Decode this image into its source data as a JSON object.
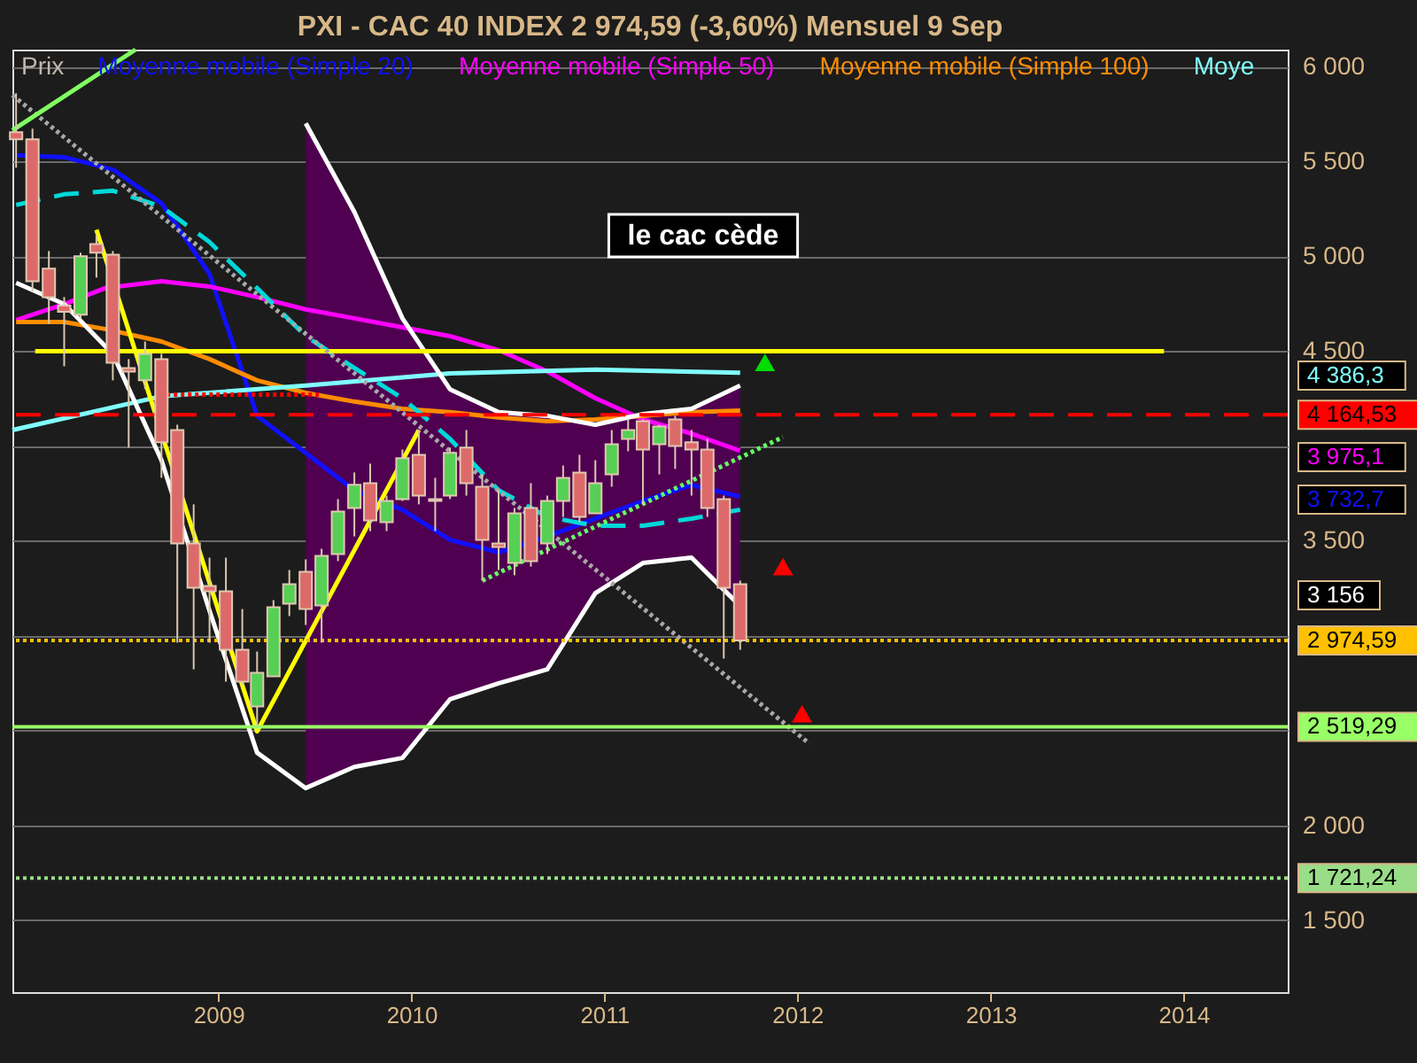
{
  "chart_data": {
    "type": "candlestick",
    "title": "PXI - CAC 40 INDEX    2 974,59 (-3,60%)    Mensuel  9 Sep",
    "xlim": [
      "2007-12-08",
      "2014-07-17"
    ],
    "xticks": [
      {
        "value": "2009-01-01",
        "label": "2009"
      },
      {
        "value": "2010-01-01",
        "label": "2010"
      },
      {
        "value": "2011-01-01",
        "label": "2011"
      },
      {
        "value": "2012-01-01",
        "label": "2012"
      },
      {
        "value": "2013-01-01",
        "label": "2013"
      },
      {
        "value": "2014-01-01",
        "label": "2014"
      }
    ],
    "ylim": [
      1120,
      6090
    ],
    "yticks": [
      {
        "value": 1500,
        "label": "1 500"
      },
      {
        "value": 2000,
        "label": "2 000"
      },
      {
        "value": 2500,
        "label": null
      },
      {
        "value": 3000,
        "label": null
      },
      {
        "value": 3500,
        "label": "3 500"
      },
      {
        "value": 4000,
        "label": null
      },
      {
        "value": 4500,
        "label": "4 500"
      },
      {
        "value": 5000,
        "label": "5 000"
      },
      {
        "value": 5500,
        "label": "5 500"
      },
      {
        "value": 6000,
        "label": "6 000"
      }
    ],
    "grid": "y",
    "legend": "top left",
    "series": [
      {
        "name": "Prix",
        "color": "#c0b8b0",
        "x": [
          "2007-12-15",
          "2008-01-15",
          "2008-02-15",
          "2008-03-15",
          "2008-04-15",
          "2008-05-15",
          "2008-06-15",
          "2008-07-15",
          "2008-08-15",
          "2008-09-15",
          "2008-10-15",
          "2008-11-15",
          "2008-12-15",
          "2009-01-15",
          "2009-02-15",
          "2009-03-15",
          "2009-04-15",
          "2009-05-15",
          "2009-06-15",
          "2009-07-15",
          "2009-08-15",
          "2009-09-15",
          "2009-10-15",
          "2009-11-15",
          "2009-12-15",
          "2010-01-15",
          "2010-02-15",
          "2010-03-15",
          "2010-04-15",
          "2010-05-15",
          "2010-06-15",
          "2010-07-15",
          "2010-08-15",
          "2010-09-15",
          "2010-10-15",
          "2010-11-15",
          "2010-12-15",
          "2011-01-15",
          "2011-02-15",
          "2011-03-15",
          "2011-04-15",
          "2011-05-15",
          "2011-06-15",
          "2011-07-15",
          "2011-08-15",
          "2011-09-15"
        ],
        "ohlc": [
          [
            5654,
            5860,
            5467,
            5617
          ],
          [
            5617,
            5673,
            4813,
            4869
          ],
          [
            4935,
            5028,
            4645,
            4785
          ],
          [
            4740,
            4785,
            4420,
            4707
          ],
          [
            4692,
            5019,
            4673,
            5000
          ],
          [
            5065,
            5112,
            4888,
            5019
          ],
          [
            5009,
            5028,
            4346,
            4439
          ],
          [
            4411,
            4458,
            3991,
            4392
          ],
          [
            4346,
            4551,
            4300,
            4486
          ],
          [
            4458,
            4486,
            3832,
            4019
          ],
          [
            4084,
            4112,
            2963,
            3486
          ],
          [
            3486,
            3692,
            2822,
            3252
          ],
          [
            3262,
            3411,
            2963,
            3234
          ],
          [
            3234,
            3411,
            2757,
            2925
          ],
          [
            2925,
            3140,
            2738,
            2757
          ],
          [
            2626,
            2916,
            2520,
            2804
          ],
          [
            2785,
            3187,
            2785,
            3149
          ],
          [
            3168,
            3346,
            3103,
            3271
          ],
          [
            3336,
            3402,
            3056,
            3140
          ],
          [
            3159,
            3458,
            2963,
            3421
          ],
          [
            3430,
            3720,
            3393,
            3654
          ],
          [
            3673,
            3860,
            3523,
            3795
          ],
          [
            3804,
            3907,
            3551,
            3607
          ],
          [
            3598,
            3738,
            3551,
            3710
          ],
          [
            3720,
            3981,
            3710,
            3935
          ],
          [
            3953,
            4084,
            3692,
            3738
          ],
          [
            3720,
            3832,
            3551,
            3710
          ],
          [
            3738,
            3991,
            3720,
            3963
          ],
          [
            3991,
            4084,
            3738,
            3804
          ],
          [
            3785,
            3850,
            3290,
            3505
          ],
          [
            3486,
            3766,
            3346,
            3467
          ],
          [
            3383,
            3673,
            3318,
            3645
          ],
          [
            3673,
            3804,
            3364,
            3392
          ],
          [
            3486,
            3738,
            3430,
            3710
          ],
          [
            3710,
            3897,
            3626,
            3832
          ],
          [
            3860,
            3953,
            3598,
            3626
          ],
          [
            3645,
            3925,
            3645,
            3804
          ],
          [
            3850,
            4084,
            3785,
            4009
          ],
          [
            4037,
            4140,
            3972,
            4084
          ],
          [
            4131,
            4140,
            3692,
            3981
          ],
          [
            4009,
            4112,
            3850,
            4103
          ],
          [
            4140,
            4159,
            3879,
            4000
          ],
          [
            4019,
            4084,
            3738,
            3981
          ],
          [
            3981,
            4037,
            3626,
            3673
          ],
          [
            3720,
            3738,
            2879,
            3252
          ],
          [
            3271,
            3290,
            2925,
            2974.59
          ]
        ],
        "colors": [
          "#dd6a6a",
          "#dd6a6a",
          "#dd6a6a",
          "#dd6a6a",
          "#55d055",
          "#dd6a6a",
          "#dd6a6a",
          "#dd6a6a",
          "#55d055",
          "#dd6a6a",
          "#dd6a6a",
          "#dd6a6a",
          "#dd6a6a",
          "#dd6a6a",
          "#dd6a6a",
          "#55d055",
          "#55d055",
          "#55d055",
          "#dd6a6a",
          "#55d055",
          "#55d055",
          "#55d055",
          "#dd6a6a",
          "#55d055",
          "#55d055",
          "#dd6a6a",
          "#dd6a6a",
          "#55d055",
          "#dd6a6a",
          "#dd6a6a",
          "#dd6a6a",
          "#55d055",
          "#dd6a6a",
          "#55d055",
          "#55d055",
          "#dd6a6a",
          "#55d055",
          "#55d055",
          "#55d055",
          "#dd6a6a",
          "#55d055",
          "#dd6a6a",
          "#dd6a6a",
          "#dd6a6a",
          "#dd6a6a",
          "#dd6a6a"
        ]
      },
      {
        "name": "Moyenne mobile (Simple 20)",
        "type": "line",
        "color": "#1010ff",
        "x": [
          "2007-12-15",
          "2008-03-15",
          "2008-06-15",
          "2008-09-15",
          "2008-12-15",
          "2009-03-15",
          "2009-06-15",
          "2009-09-15",
          "2009-12-15",
          "2010-03-15",
          "2010-06-15",
          "2010-09-15",
          "2010-12-15",
          "2011-03-15",
          "2011-06-15",
          "2011-09-15"
        ],
        "values": [
          5533,
          5523,
          5458,
          5280,
          4907,
          4159,
          3963,
          3766,
          3664,
          3505,
          3439,
          3523,
          3617,
          3710,
          3794,
          3732.7
        ],
        "lower": [
          null,
          null,
          null,
          null,
          null,
          null,
          2196,
          2308,
          2355,
          2664,
          2748,
          2822,
          3224,
          3383,
          3411,
          3156
        ],
        "upper": [
          null,
          null,
          null,
          null,
          null,
          null,
          5701,
          5234,
          4673,
          4299,
          4178,
          4159,
          4112,
          4168,
          4196,
          4318
        ]
      },
      {
        "name": "Moyenne mobile (Simple 50)",
        "type": "line",
        "color": "#ff00ff",
        "x": [
          "2007-12-15",
          "2008-03-15",
          "2008-05-31",
          "2008-09-15",
          "2008-12-15",
          "2009-03-15",
          "2009-06-15",
          "2009-09-15",
          "2009-12-15",
          "2010-03-15",
          "2010-06-15",
          "2010-09-15",
          "2010-12-15",
          "2011-03-15",
          "2011-06-15",
          "2011-09-15"
        ],
        "values": [
          4664,
          4748,
          4832,
          4869,
          4841,
          4785,
          4720,
          4673,
          4626,
          4579,
          4505,
          4393,
          4252,
          4140,
          4065,
          3975.1
        ]
      },
      {
        "name": "Moyenne mobile (Simple 100)",
        "type": "line",
        "color": "#ff8c00",
        "x": [
          "2007-12-15",
          "2008-03-15",
          "2008-05-31",
          "2008-09-15",
          "2008-12-15",
          "2009-03-15",
          "2009-06-15",
          "2009-09-15",
          "2009-12-15",
          "2010-03-15",
          "2010-06-15",
          "2010-09-15",
          "2010-12-15",
          "2011-03-15",
          "2011-06-15",
          "2011-09-15"
        ],
        "values": [
          4654,
          4654,
          4617,
          4551,
          4458,
          4346,
          4280,
          4234,
          4196,
          4178,
          4150,
          4131,
          4140,
          4159,
          4178,
          4187
        ]
      },
      {
        "name": "Moye",
        "type": "line",
        "color": "#80ffff",
        "x": [
          "2007-12-08",
          "2008-09-15",
          "2009-06-15",
          "2010-03-15",
          "2010-12-15",
          "2011-09-15"
        ],
        "values": [
          4084,
          4262,
          4318,
          4383,
          4402,
          4386.3
        ]
      },
      {
        "type": "line",
        "color": "#00d8d8",
        "line_style": "dashed",
        "x": [
          "2007-12-15",
          "2008-03-15",
          "2008-06-15",
          "2008-09-15",
          "2008-12-15",
          "2009-03-15",
          "2009-06-15",
          "2009-09-15",
          "2009-12-15",
          "2010-03-15",
          "2010-06-15",
          "2010-09-15",
          "2010-12-15",
          "2011-03-15",
          "2011-06-15",
          "2011-09-15"
        ],
        "values": [
          5271,
          5327,
          5346,
          5262,
          5075,
          4832,
          4579,
          4411,
          4252,
          4037,
          3766,
          3626,
          3579,
          3579,
          3617,
          3664
        ]
      },
      {
        "type": "line",
        "color": "#ffffff",
        "x": [
          "2007-12-15",
          "2008-03-15",
          "2008-06-15",
          "2008-09-15",
          "2008-12-15",
          "2009-03-15",
          "2009-06-15",
          "2009-09-15",
          "2009-12-15",
          "2010-03-15",
          "2010-06-15",
          "2010-09-15",
          "2010-12-15",
          "2011-03-15",
          "2011-06-15",
          "2011-09-15"
        ],
        "values": [
          4860,
          4748,
          4486,
          3925,
          3131,
          2383,
          2196,
          2308,
          2355,
          2664,
          2748,
          2822,
          3224,
          3383,
          3411,
          3156
        ]
      },
      {
        "type": "line",
        "color": "#ffffff",
        "x": [
          "2009-06-15",
          "2009-09-15",
          "2009-12-15",
          "2010-03-15",
          "2010-06-15",
          "2010-09-15",
          "2010-12-15",
          "2011-03-15",
          "2011-06-15",
          "2011-09-15"
        ],
        "values": [
          5701,
          5234,
          4673,
          4299,
          4178,
          4159,
          4112,
          4168,
          4196,
          4318
        ]
      },
      {
        "type": "line",
        "color": "#ffff00",
        "x": [
          "2008-01-20",
          "2013-11-25"
        ],
        "values": [
          4500,
          4500
        ]
      },
      {
        "type": "line",
        "color": "#ff0000",
        "line_style": "dotted",
        "x": [
          "2008-09-25",
          "2009-07-10"
        ],
        "values": [
          4271,
          4271
        ]
      },
      {
        "type": "line",
        "color": "#ffff00",
        "x": [
          "2008-05-15",
          "2009-03-15",
          "2010-01-15"
        ],
        "values": [
          5140,
          2495,
          4084
        ]
      },
      {
        "type": "line",
        "color": "#a8a8a8",
        "line_style": "dotted",
        "x": [
          "2007-12-08",
          "2012-01-24"
        ],
        "values": [
          5850,
          2430
        ]
      },
      {
        "type": "line",
        "color": "#66ff66",
        "line_style": "dotted",
        "x": [
          "2010-05-15",
          "2011-12-05"
        ],
        "values": [
          3290,
          4047
        ]
      },
      {
        "type": "line",
        "color": "#80ff60",
        "x": [
          "2007-12-08",
          "2008-07-28"
        ],
        "values": [
          5664,
          6090
        ]
      },
      {
        "type": "scatter",
        "color": "#00dd00",
        "marker": "triangle",
        "x": [
          "2011-11-01"
        ],
        "values": [
          4440
        ]
      },
      {
        "type": "scatter",
        "color": "#ff0000",
        "marker": "triangle",
        "x": [
          "2011-12-05",
          "2012-01-10"
        ],
        "values": [
          3364,
          2589
        ]
      }
    ],
    "ref_lines": [
      {
        "axis": "y",
        "value": 4164.53,
        "label": "4 164,53",
        "color": "#ff0000",
        "line_style": "dashed"
      },
      {
        "axis": "y",
        "value": 2974.59,
        "label": "2 974,59",
        "color": "#ffc000",
        "line_style": "dotted"
      },
      {
        "axis": "y",
        "value": 2519.29,
        "label": "2 519,29",
        "color": "#99ff66",
        "line_style": "solid"
      },
      {
        "axis": "y",
        "value": 1721.24,
        "label": "1 721,24",
        "color": "#99dd88",
        "line_style": "dotted"
      }
    ],
    "annotations": [
      "le cac cède",
      "3 156",
      "4 386,3",
      "3 975,1",
      "3 732,7"
    ]
  }
}
